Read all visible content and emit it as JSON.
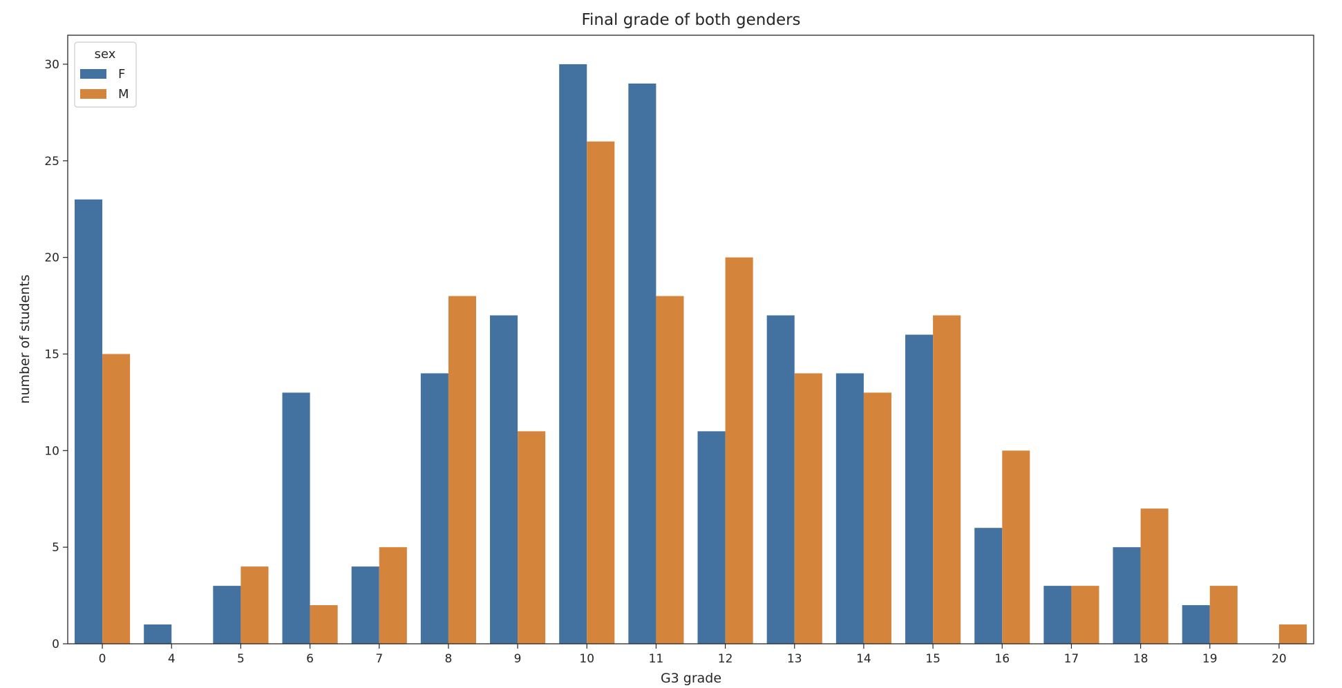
{
  "chart_data": {
    "type": "bar",
    "title": "Final grade of both genders",
    "xlabel": "G3 grade",
    "ylabel": "number of students",
    "categories": [
      "0",
      "4",
      "5",
      "6",
      "7",
      "8",
      "9",
      "10",
      "11",
      "12",
      "13",
      "14",
      "15",
      "16",
      "17",
      "18",
      "19",
      "20"
    ],
    "series": [
      {
        "name": "F",
        "color": "#4472a0",
        "values": [
          23,
          1,
          3,
          13,
          4,
          14,
          17,
          30,
          29,
          11,
          17,
          14,
          16,
          6,
          3,
          5,
          2,
          0
        ]
      },
      {
        "name": "M",
        "color": "#d5843c",
        "values": [
          15,
          0,
          4,
          2,
          5,
          18,
          11,
          26,
          18,
          20,
          14,
          13,
          17,
          10,
          3,
          7,
          3,
          1
        ]
      }
    ],
    "ylim": [
      0,
      31.5
    ],
    "yticks": [
      0,
      5,
      10,
      15,
      20,
      25,
      30
    ],
    "legend": {
      "title": "sex",
      "position": "top-left"
    },
    "grid": false
  }
}
